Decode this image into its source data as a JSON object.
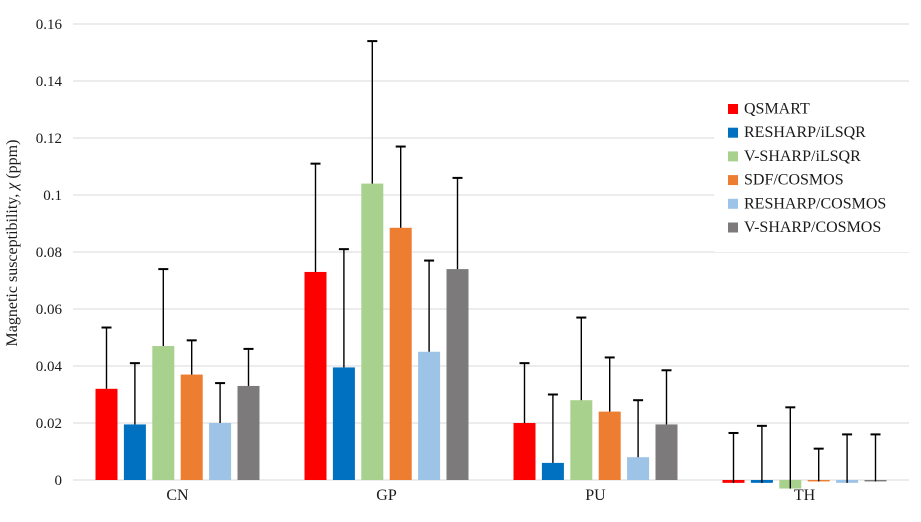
{
  "chart_data": {
    "type": "bar",
    "title": "",
    "xlabel": "",
    "ylabel": "Magnetic susceptibility, χ (ppm)",
    "ylim": [
      0,
      0.16
    ],
    "ytick_step": 0.02,
    "ytick_labels": [
      "0",
      "0.02",
      "0.04",
      "0.06",
      "0.08",
      "0.1",
      "0.12",
      "0.14",
      "0.16"
    ],
    "grid": true,
    "legend_position": "right",
    "error_bars": "plus-direction-only, black with top caps",
    "categories": [
      "CN",
      "GP",
      "PU",
      "TH"
    ],
    "series": [
      {
        "name": "QSMART",
        "color": "#FF0000",
        "values": [
          0.032,
          0.073,
          0.02,
          -0.001
        ],
        "errors_plus": [
          0.0215,
          0.038,
          0.021,
          0.0175
        ]
      },
      {
        "name": "RESHARP/iLSQR",
        "color": "#0070C0",
        "values": [
          0.0195,
          0.0395,
          0.006,
          -0.001
        ],
        "errors_plus": [
          0.0215,
          0.0415,
          0.024,
          0.02
        ]
      },
      {
        "name": "V-SHARP/iLSQR",
        "color": "#A9D18E",
        "values": [
          0.047,
          0.104,
          0.028,
          -0.003
        ],
        "errors_plus": [
          0.027,
          0.05,
          0.029,
          0.0285
        ]
      },
      {
        "name": "SDF/COSMOS",
        "color": "#ED7D31",
        "values": [
          0.037,
          0.0885,
          0.024,
          -0.0005
        ],
        "errors_plus": [
          0.012,
          0.0285,
          0.019,
          0.0115
        ]
      },
      {
        "name": "RESHARP/COSMOS",
        "color": "#9DC3E6",
        "values": [
          0.02,
          0.045,
          0.008,
          -0.001
        ],
        "errors_plus": [
          0.014,
          0.032,
          0.02,
          0.017
        ]
      },
      {
        "name": "V-SHARP/COSMOS",
        "color": "#7C7A7A",
        "values": [
          0.033,
          0.074,
          0.0195,
          -0.0005
        ],
        "errors_plus": [
          0.013,
          0.032,
          0.019,
          0.0165
        ]
      }
    ],
    "colors": {
      "grid": "#D9D9D9",
      "text": "#1a1a1a",
      "error": "#000000",
      "background": "#FFFFFF"
    }
  }
}
